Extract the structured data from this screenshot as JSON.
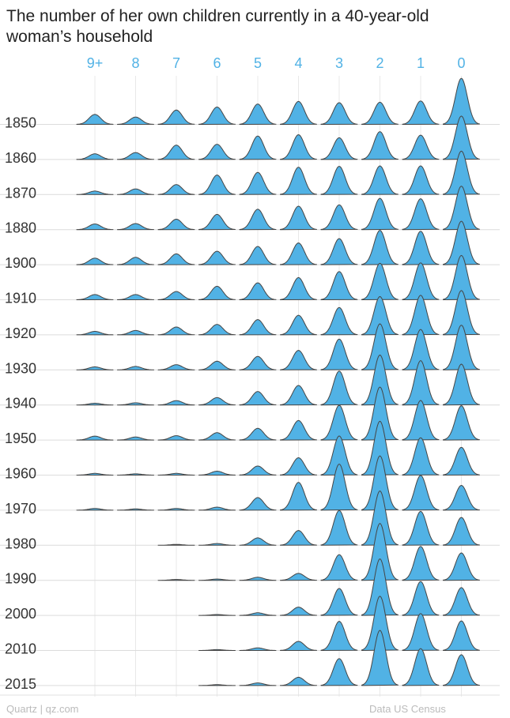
{
  "chart_data": {
    "type": "ridgeline",
    "title": "The number of her own children currently in a 40-year-old woman’s household",
    "categories": [
      "9+",
      "8",
      "7",
      "6",
      "5",
      "4",
      "3",
      "2",
      "1",
      "0"
    ],
    "years": [
      "1850",
      "1860",
      "1870",
      "1880",
      "1900",
      "1910",
      "1920",
      "1930",
      "1940",
      "1950",
      "1960",
      "1970",
      "1980",
      "1990",
      "2000",
      "2010",
      "2015"
    ],
    "units": "relative share of households (0 = flat, 1 = tallest peak shown)",
    "values": [
      [
        0.23,
        0.17,
        0.33,
        0.4,
        0.47,
        0.53,
        0.5,
        0.51,
        0.54,
        1.06
      ],
      [
        0.13,
        0.16,
        0.33,
        0.35,
        0.54,
        0.57,
        0.5,
        0.64,
        0.56,
        1.0
      ],
      [
        0.08,
        0.13,
        0.23,
        0.45,
        0.51,
        0.63,
        0.65,
        0.66,
        0.66,
        1.0
      ],
      [
        0.13,
        0.14,
        0.24,
        0.35,
        0.47,
        0.54,
        0.57,
        0.72,
        0.71,
        1.0
      ],
      [
        0.15,
        0.17,
        0.25,
        0.31,
        0.42,
        0.5,
        0.6,
        0.79,
        0.77,
        1.0
      ],
      [
        0.12,
        0.12,
        0.19,
        0.31,
        0.39,
        0.51,
        0.65,
        0.84,
        0.85,
        1.02
      ],
      [
        0.08,
        0.1,
        0.18,
        0.24,
        0.35,
        0.45,
        0.63,
        0.88,
        0.91,
        1.02
      ],
      [
        0.07,
        0.08,
        0.12,
        0.2,
        0.31,
        0.45,
        0.71,
        1.06,
        0.93,
        1.03
      ],
      [
        0.04,
        0.05,
        0.1,
        0.17,
        0.31,
        0.45,
        0.78,
        1.15,
        1.02,
        0.94
      ],
      [
        0.09,
        0.07,
        0.1,
        0.17,
        0.27,
        0.45,
        0.8,
        1.22,
        0.91,
        0.79
      ],
      [
        0.04,
        0.03,
        0.04,
        0.09,
        0.21,
        0.4,
        0.9,
        1.24,
        0.86,
        0.64
      ],
      [
        0.04,
        0.03,
        0.04,
        0.07,
        0.29,
        0.64,
        1.06,
        1.25,
        0.8,
        0.57
      ],
      [
        0,
        0,
        0.02,
        0.04,
        0.17,
        0.34,
        0.8,
        1.25,
        0.78,
        0.64
      ],
      [
        0,
        0,
        0.02,
        0.03,
        0.07,
        0.16,
        0.59,
        1.31,
        0.78,
        0.63
      ],
      [
        0,
        0,
        0,
        0.02,
        0.06,
        0.19,
        0.62,
        1.3,
        0.78,
        0.64
      ],
      [
        0,
        0,
        0,
        0.02,
        0.06,
        0.21,
        0.67,
        1.25,
        0.85,
        0.68
      ],
      [
        0,
        0,
        0,
        0.02,
        0.06,
        0.19,
        0.62,
        1.27,
        0.85,
        0.71
      ]
    ]
  },
  "footer": {
    "credit": "Quartz | qz.com",
    "source": "Data US Census"
  },
  "colors": {
    "fill": "#51b2e5",
    "stroke": "#454545",
    "baseline": "#dcdcdc",
    "gridline": "#e8e8e8",
    "category_label": "#51b2e5",
    "year_label": "#333333",
    "footer_text": "#bbbbbb"
  }
}
